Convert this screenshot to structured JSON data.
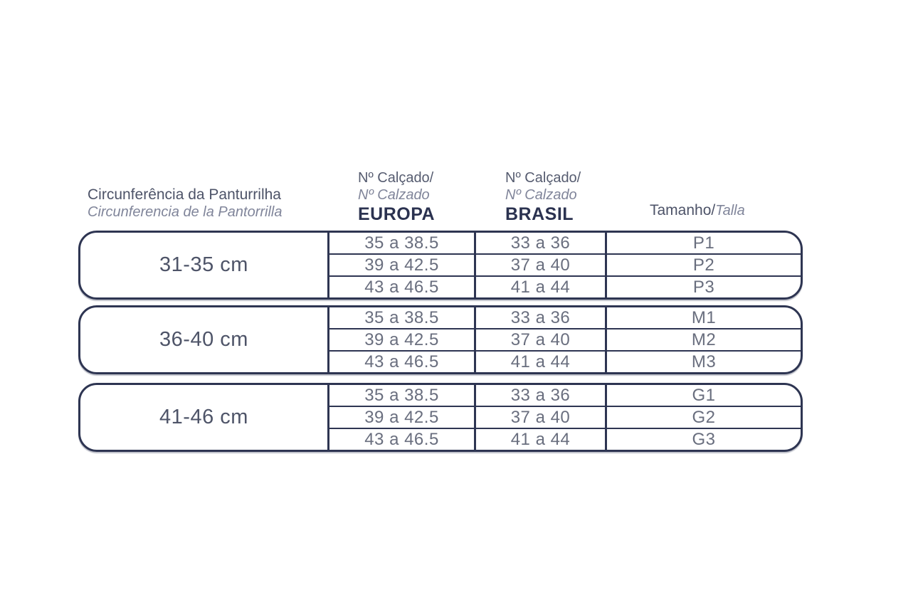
{
  "colors": {
    "border": "#2e3552",
    "header_text": "#4d5368",
    "header_italic": "#80859a",
    "header_bold": "#2b3250",
    "data_text": "#696e7e",
    "background": "#ffffff"
  },
  "header": {
    "col1": {
      "title": "Circunferência da Panturrilha",
      "subtitle": "Circunferencia de la Pantorrilla"
    },
    "col2": {
      "line1": "Nº Calçado/",
      "line2": "Nº Calzado",
      "line3": "EUROPA"
    },
    "col3": {
      "line1": "Nº Calçado/",
      "line2": "Nº Calzado",
      "line3": "BRASIL"
    },
    "col4": {
      "title": "Tamanho/",
      "subtitle": "Talla"
    }
  },
  "groups": [
    {
      "range": "31-35 cm",
      "rows": [
        {
          "europa": "35 a 38.5",
          "brasil": "33 a 36",
          "size": "P1"
        },
        {
          "europa": "39 a 42.5",
          "brasil": "37 a 40",
          "size": "P2"
        },
        {
          "europa": "43 a 46.5",
          "brasil": "41 a 44",
          "size": "P3"
        }
      ]
    },
    {
      "range": "36-40 cm",
      "rows": [
        {
          "europa": "35 a 38.5",
          "brasil": "33 a 36",
          "size": "M1"
        },
        {
          "europa": "39 a 42.5",
          "brasil": "37 a 40",
          "size": "M2"
        },
        {
          "europa": "43 a 46.5",
          "brasil": "41 a 44",
          "size": "M3"
        }
      ]
    },
    {
      "range": "41-46 cm",
      "rows": [
        {
          "europa": "35 a 38.5",
          "brasil": "33 a 36",
          "size": "G1"
        },
        {
          "europa": "39 a 42.5",
          "brasil": "37 a 40",
          "size": "G2"
        },
        {
          "europa": "43 a 46.5",
          "brasil": "41 a 44",
          "size": "G3"
        }
      ]
    }
  ]
}
